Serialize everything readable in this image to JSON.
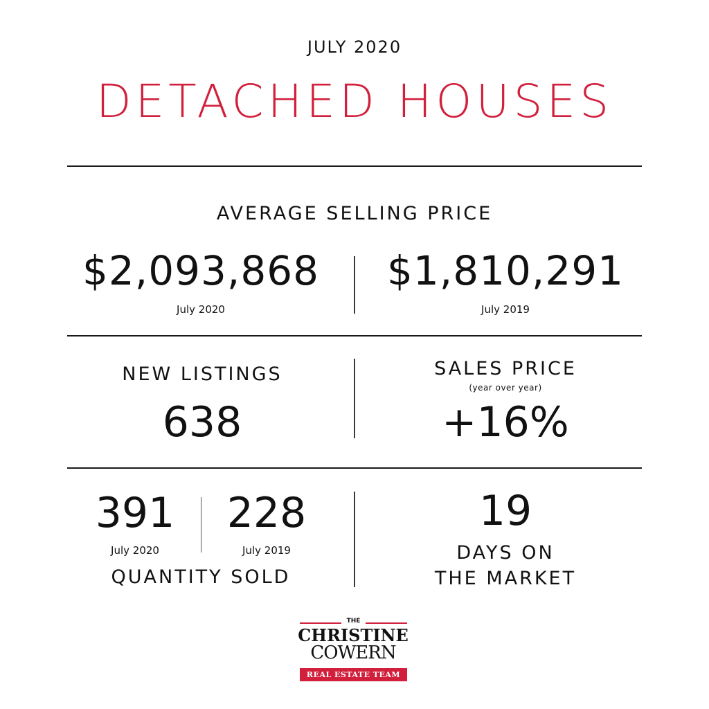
{
  "header": {
    "month": "JULY 2020",
    "title": "DETACHED HOUSES",
    "accent_color": "#d21f3c"
  },
  "average_selling_price": {
    "label": "AVERAGE SELLING PRICE",
    "current": {
      "value": "$2,093,868",
      "period": "July 2020"
    },
    "previous": {
      "value": "$1,810,291",
      "period": "July 2019"
    }
  },
  "new_listings": {
    "label": "NEW LISTINGS",
    "value": "638"
  },
  "sales_price": {
    "label": "SALES PRICE",
    "note": "(year over year)",
    "value": "+16%"
  },
  "quantity_sold": {
    "label": "QUANTITY SOLD",
    "current": {
      "value": "391",
      "period": "July 2020"
    },
    "previous": {
      "value": "228",
      "period": "July 2019"
    }
  },
  "days_on_market": {
    "value": "19",
    "label_line1": "DAYS ON",
    "label_line2": "THE MARKET"
  },
  "logo": {
    "the": "THE",
    "name_line1": "CHRISTINE",
    "name_line2": "COWERN",
    "tagline": "REAL ESTATE TEAM"
  }
}
